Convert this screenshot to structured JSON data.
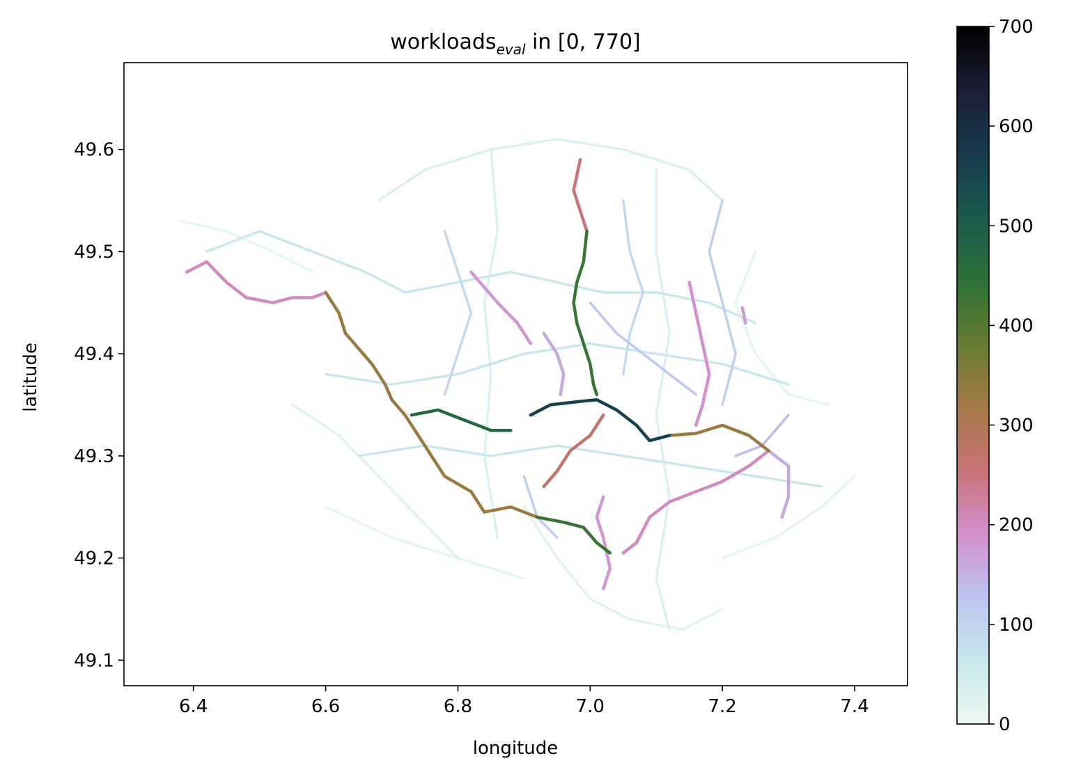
{
  "chart_data": {
    "type": "line",
    "title_main": "workloads",
    "title_sub": "eval",
    "title_rest": " in [0, 770]",
    "xlabel": "longitude",
    "ylabel": "latitude",
    "xlim": [
      6.295,
      7.48
    ],
    "ylim": [
      49.075,
      49.685
    ],
    "xticks": [
      6.4,
      6.6,
      6.8,
      7.0,
      7.2,
      7.4
    ],
    "xtick_labels": [
      "6.4",
      "6.6",
      "6.8",
      "7.0",
      "7.2",
      "7.4"
    ],
    "yticks": [
      49.1,
      49.2,
      49.3,
      49.4,
      49.5,
      49.6
    ],
    "ytick_labels": [
      "49.1",
      "49.2",
      "49.3",
      "49.4",
      "49.5",
      "49.6"
    ],
    "colorbar": {
      "colormap": "cubehelix_r",
      "min": 0,
      "max": 700,
      "ticks": [
        0,
        100,
        200,
        300,
        400,
        500,
        600,
        700
      ],
      "tick_labels": [
        "0",
        "100",
        "200",
        "300",
        "400",
        "500",
        "600",
        "700"
      ],
      "stops": [
        "#eef9f2",
        "#c8e7ec",
        "#bec5f1",
        "#d28fcd",
        "#c97276",
        "#a57947",
        "#667c32",
        "#2c7138",
        "#1a5a4d",
        "#173a4c",
        "#1b1e36",
        "#000000"
      ]
    },
    "grid": false,
    "series": [
      {
        "workload": 200,
        "points": [
          [
            6.39,
            49.48
          ],
          [
            6.42,
            49.49
          ],
          [
            6.45,
            49.47
          ],
          [
            6.48,
            49.455
          ],
          [
            6.52,
            49.45
          ],
          [
            6.55,
            49.455
          ],
          [
            6.58,
            49.455
          ],
          [
            6.6,
            49.46
          ]
        ]
      },
      {
        "workload": 330,
        "points": [
          [
            6.6,
            49.46
          ],
          [
            6.62,
            49.44
          ],
          [
            6.63,
            49.42
          ],
          [
            6.65,
            49.405
          ],
          [
            6.67,
            49.39
          ],
          [
            6.69,
            49.37
          ],
          [
            6.7,
            49.355
          ],
          [
            6.72,
            49.34
          ],
          [
            6.74,
            49.32
          ],
          [
            6.76,
            49.3
          ],
          [
            6.78,
            49.28
          ],
          [
            6.82,
            49.265
          ],
          [
            6.84,
            49.245
          ],
          [
            6.88,
            49.25
          ],
          [
            6.92,
            49.24
          ]
        ]
      },
      {
        "workload": 430,
        "points": [
          [
            6.92,
            49.24
          ],
          [
            6.96,
            49.235
          ],
          [
            6.99,
            49.23
          ],
          [
            7.01,
            49.215
          ],
          [
            7.03,
            49.205
          ]
        ]
      },
      {
        "workload": 470,
        "points": [
          [
            6.73,
            49.34
          ],
          [
            6.77,
            49.345
          ],
          [
            6.81,
            49.335
          ],
          [
            6.85,
            49.325
          ],
          [
            6.88,
            49.325
          ]
        ]
      },
      {
        "workload": 560,
        "points": [
          [
            6.91,
            49.34
          ],
          [
            6.94,
            49.35
          ],
          [
            6.98,
            49.353
          ],
          [
            7.01,
            49.355
          ],
          [
            7.04,
            49.345
          ],
          [
            7.07,
            49.33
          ],
          [
            7.09,
            49.315
          ],
          [
            7.12,
            49.32
          ]
        ]
      },
      {
        "workload": 330,
        "points": [
          [
            7.12,
            49.32
          ],
          [
            7.16,
            49.322
          ],
          [
            7.2,
            49.33
          ],
          [
            7.24,
            49.32
          ],
          [
            7.27,
            49.305
          ]
        ]
      },
      {
        "workload": 430,
        "points": [
          [
            6.995,
            49.52
          ],
          [
            6.99,
            49.49
          ],
          [
            6.98,
            49.47
          ],
          [
            6.975,
            49.45
          ],
          [
            6.98,
            49.43
          ],
          [
            6.99,
            49.41
          ],
          [
            7.0,
            49.39
          ],
          [
            7.005,
            49.37
          ],
          [
            7.01,
            49.36
          ]
        ]
      },
      {
        "workload": 250,
        "points": [
          [
            6.985,
            49.59
          ],
          [
            6.975,
            49.56
          ],
          [
            6.99,
            49.53
          ],
          [
            6.995,
            49.52
          ]
        ]
      },
      {
        "workload": 270,
        "points": [
          [
            7.02,
            49.34
          ],
          [
            7.0,
            49.32
          ],
          [
            6.97,
            49.305
          ],
          [
            6.95,
            49.285
          ],
          [
            6.93,
            49.27
          ]
        ]
      },
      {
        "workload": 200,
        "points": [
          [
            7.27,
            49.305
          ],
          [
            7.24,
            49.29
          ],
          [
            7.2,
            49.275
          ],
          [
            7.16,
            49.265
          ],
          [
            7.12,
            49.255
          ],
          [
            7.09,
            49.24
          ],
          [
            7.07,
            49.215
          ],
          [
            7.05,
            49.205
          ]
        ]
      },
      {
        "workload": 160,
        "points": [
          [
            7.27,
            49.305
          ],
          [
            7.3,
            49.29
          ],
          [
            7.3,
            49.26
          ],
          [
            7.29,
            49.24
          ]
        ]
      },
      {
        "workload": 190,
        "points": [
          [
            7.15,
            49.47
          ],
          [
            7.16,
            49.44
          ],
          [
            7.17,
            49.41
          ],
          [
            7.18,
            49.38
          ],
          [
            7.17,
            49.35
          ],
          [
            7.16,
            49.33
          ]
        ]
      },
      {
        "workload": 160,
        "points": [
          [
            6.93,
            49.42
          ],
          [
            6.95,
            49.4
          ],
          [
            6.96,
            49.38
          ],
          [
            6.955,
            49.36
          ]
        ]
      },
      {
        "workload": 180,
        "points": [
          [
            6.82,
            49.48
          ],
          [
            6.86,
            49.45
          ],
          [
            6.89,
            49.43
          ],
          [
            6.91,
            49.41
          ]
        ]
      },
      {
        "workload": 180,
        "points": [
          [
            7.23,
            49.445
          ],
          [
            7.235,
            49.43
          ]
        ]
      },
      {
        "workload": 180,
        "points": [
          [
            7.02,
            49.26
          ],
          [
            7.01,
            49.24
          ],
          [
            7.02,
            49.22
          ],
          [
            7.03,
            49.19
          ],
          [
            7.02,
            49.17
          ]
        ]
      },
      {
        "workload": 140,
        "points": [
          [
            7.3,
            49.34
          ],
          [
            7.26,
            49.31
          ],
          [
            7.22,
            49.3
          ]
        ]
      },
      {
        "workload": 60,
        "points": [
          [
            6.42,
            49.5
          ],
          [
            6.5,
            49.52
          ],
          [
            6.58,
            49.5
          ],
          [
            6.66,
            49.48
          ],
          [
            6.72,
            49.46
          ],
          [
            6.8,
            49.47
          ],
          [
            6.88,
            49.48
          ],
          [
            6.95,
            49.47
          ],
          [
            7.02,
            49.46
          ],
          [
            7.1,
            49.46
          ],
          [
            7.18,
            49.45
          ],
          [
            7.25,
            49.43
          ]
        ]
      },
      {
        "workload": 60,
        "points": [
          [
            6.6,
            49.38
          ],
          [
            6.7,
            49.37
          ],
          [
            6.8,
            49.38
          ],
          [
            6.9,
            49.4
          ],
          [
            7.0,
            49.41
          ],
          [
            7.1,
            49.4
          ],
          [
            7.2,
            49.39
          ],
          [
            7.3,
            49.37
          ]
        ]
      },
      {
        "workload": 60,
        "points": [
          [
            6.65,
            49.3
          ],
          [
            6.75,
            49.31
          ],
          [
            6.85,
            49.3
          ],
          [
            6.95,
            49.31
          ],
          [
            7.05,
            49.3
          ],
          [
            7.15,
            49.29
          ],
          [
            7.25,
            49.28
          ],
          [
            7.35,
            49.27
          ]
        ]
      },
      {
        "workload": 50,
        "points": [
          [
            6.68,
            49.55
          ],
          [
            6.75,
            49.58
          ],
          [
            6.85,
            49.6
          ],
          [
            6.95,
            49.61
          ],
          [
            7.05,
            49.6
          ],
          [
            7.15,
            49.58
          ],
          [
            7.2,
            49.55
          ]
        ]
      },
      {
        "workload": 50,
        "points": [
          [
            6.85,
            49.6
          ],
          [
            6.86,
            49.52
          ],
          [
            6.84,
            49.45
          ],
          [
            6.85,
            49.38
          ],
          [
            6.84,
            49.3
          ],
          [
            6.86,
            49.22
          ]
        ]
      },
      {
        "workload": 50,
        "points": [
          [
            7.1,
            49.58
          ],
          [
            7.1,
            49.5
          ],
          [
            7.12,
            49.42
          ],
          [
            7.1,
            49.34
          ],
          [
            7.12,
            49.26
          ],
          [
            7.1,
            49.18
          ],
          [
            7.12,
            49.13
          ]
        ]
      },
      {
        "workload": 40,
        "points": [
          [
            6.9,
            49.25
          ],
          [
            6.95,
            49.2
          ],
          [
            7.0,
            49.16
          ],
          [
            7.06,
            49.14
          ],
          [
            7.14,
            49.13
          ],
          [
            7.2,
            49.15
          ]
        ]
      },
      {
        "workload": 40,
        "points": [
          [
            6.55,
            49.35
          ],
          [
            6.62,
            49.32
          ],
          [
            6.68,
            49.28
          ],
          [
            6.74,
            49.24
          ],
          [
            6.8,
            49.2
          ]
        ]
      },
      {
        "workload": 30,
        "points": [
          [
            6.38,
            49.53
          ],
          [
            6.45,
            49.52
          ],
          [
            6.52,
            49.5
          ],
          [
            6.58,
            49.48
          ]
        ]
      },
      {
        "workload": 30,
        "points": [
          [
            6.6,
            49.25
          ],
          [
            6.7,
            49.22
          ],
          [
            6.8,
            49.2
          ],
          [
            6.9,
            49.18
          ]
        ]
      },
      {
        "workload": 30,
        "points": [
          [
            7.2,
            49.2
          ],
          [
            7.28,
            49.22
          ],
          [
            7.35,
            49.25
          ],
          [
            7.4,
            49.28
          ]
        ]
      },
      {
        "workload": 30,
        "points": [
          [
            7.25,
            49.5
          ],
          [
            7.22,
            49.45
          ],
          [
            7.25,
            49.4
          ],
          [
            7.3,
            49.36
          ],
          [
            7.36,
            49.35
          ]
        ]
      },
      {
        "workload": 90,
        "points": [
          [
            6.78,
            49.52
          ],
          [
            6.8,
            49.48
          ],
          [
            6.82,
            49.44
          ],
          [
            6.8,
            49.4
          ],
          [
            6.78,
            49.36
          ]
        ]
      },
      {
        "workload": 90,
        "points": [
          [
            7.05,
            49.55
          ],
          [
            7.06,
            49.5
          ],
          [
            7.08,
            49.46
          ],
          [
            7.06,
            49.42
          ],
          [
            7.05,
            49.38
          ]
        ]
      },
      {
        "workload": 110,
        "points": [
          [
            7.2,
            49.55
          ],
          [
            7.18,
            49.5
          ],
          [
            7.2,
            49.45
          ],
          [
            7.22,
            49.4
          ],
          [
            7.2,
            49.35
          ]
        ]
      },
      {
        "workload": 120,
        "points": [
          [
            7.0,
            49.45
          ],
          [
            7.04,
            49.42
          ],
          [
            7.08,
            49.4
          ],
          [
            7.12,
            49.38
          ],
          [
            7.16,
            49.36
          ]
        ]
      },
      {
        "workload": 110,
        "points": [
          [
            6.9,
            49.28
          ],
          [
            6.92,
            49.24
          ],
          [
            6.95,
            49.22
          ]
        ]
      }
    ]
  }
}
